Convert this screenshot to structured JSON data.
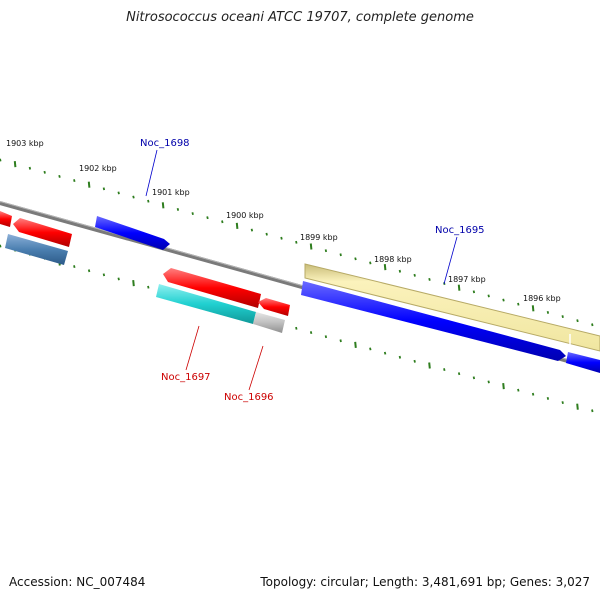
{
  "title": "Nitrosococcus oceani ATCC 19707, complete genome",
  "footer": {
    "accession": "Accession: NC_007484",
    "stats": "Topology: circular; Length: 3,481,691 bp; Genes: 3,027"
  },
  "colors": {
    "backbone": "#808080",
    "tick": "#2e7d1e",
    "forward_cds": "#0000ff",
    "reverse_cds": "#ff0000",
    "trna": "#4b7fb0",
    "rrna_cyan": "#20d0d0",
    "gray_feature": "#c0c0c0",
    "pale_region": "#f0e6a0",
    "label_forward": "#0000aa",
    "label_reverse": "#cc0000"
  },
  "scale_labels": [
    "1903 kbp",
    "1902 kbp",
    "1901 kbp",
    "1900 kbp",
    "1899 kbp",
    "1898 kbp",
    "1897 kbp",
    "1896 kbp"
  ],
  "feature_labels": {
    "noc_1698": "Noc_1698",
    "noc_1695": "Noc_1695",
    "noc_1697": "Noc_1697",
    "noc_1696": "Noc_1696"
  }
}
